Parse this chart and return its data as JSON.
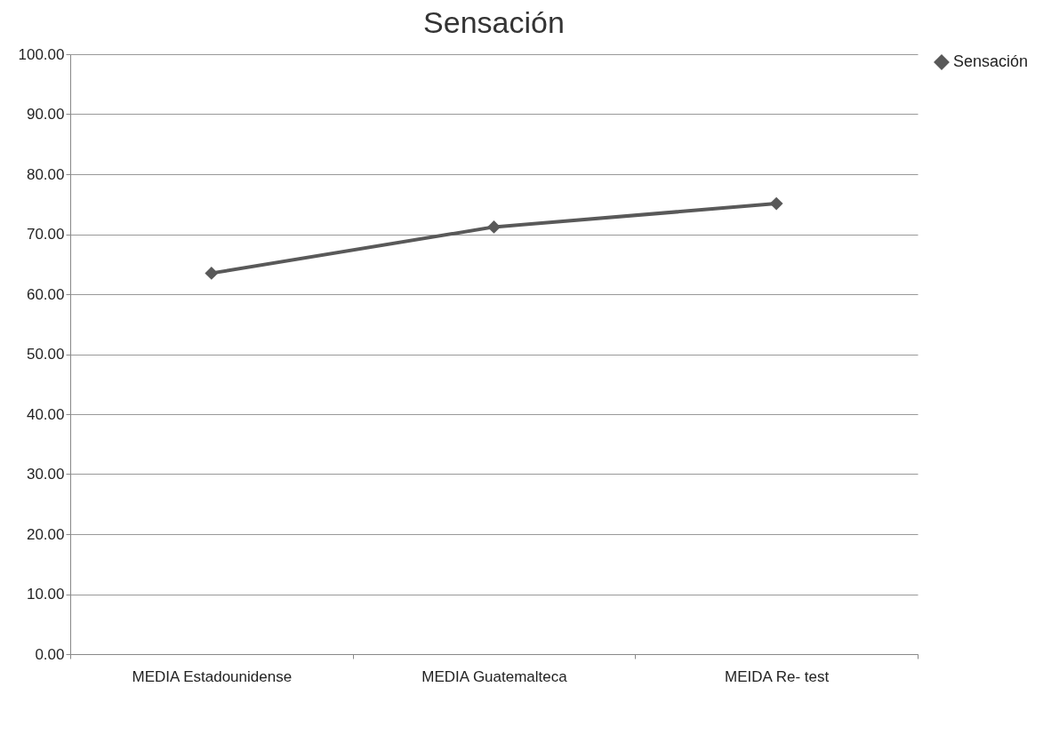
{
  "chart_data": {
    "type": "line",
    "title": "Sensación",
    "categories": [
      "MEDIA Estadounidense",
      "MEDIA Guatemalteca",
      "MEIDA Re- test"
    ],
    "series": [
      {
        "name": "Sensación",
        "color": "#595959",
        "values": [
          63.5,
          71.2,
          75.1
        ]
      }
    ],
    "ylim": [
      0,
      100
    ],
    "yticks": [
      {
        "value": 0,
        "label": "0.00"
      },
      {
        "value": 10,
        "label": "10.00"
      },
      {
        "value": 20,
        "label": "20.00"
      },
      {
        "value": 30,
        "label": "30.00"
      },
      {
        "value": 40,
        "label": "40.00"
      },
      {
        "value": 50,
        "label": "50.00"
      },
      {
        "value": 60,
        "label": "60.00"
      },
      {
        "value": 70,
        "label": "70.00"
      },
      {
        "value": 80,
        "label": "80.00"
      },
      {
        "value": 90,
        "label": "90.00"
      },
      {
        "value": 100,
        "label": "100.00"
      }
    ],
    "grid": "y",
    "legend": "right",
    "marker": "diamond",
    "line_style": "solid"
  }
}
